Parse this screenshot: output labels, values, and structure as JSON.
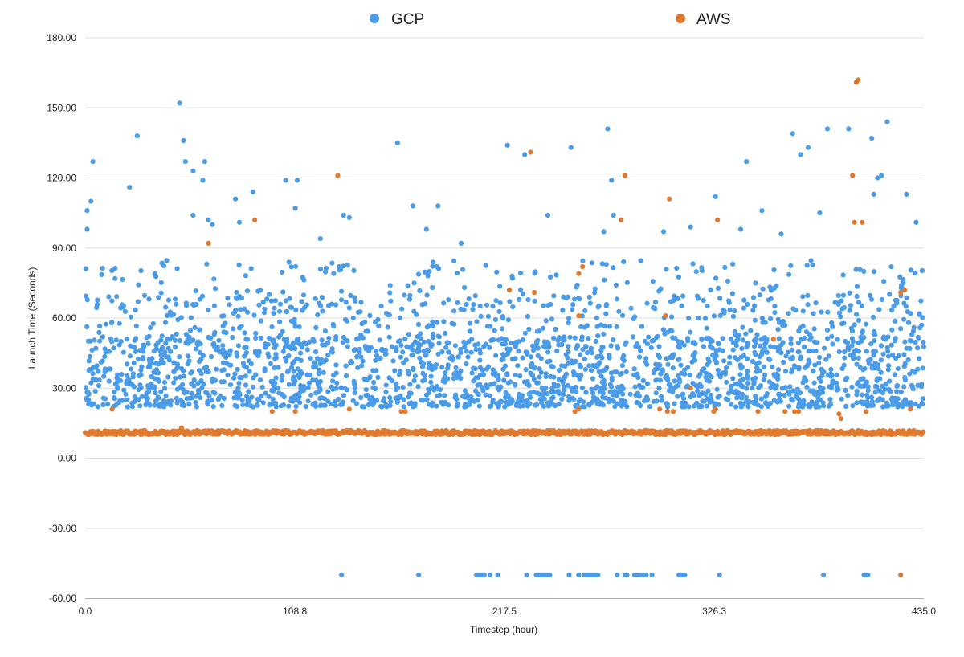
{
  "chart_data": {
    "type": "scatter",
    "title": "",
    "xlabel": "Timestep (hour)",
    "ylabel": "Launch Time (Seconds)",
    "xlim": [
      0,
      435
    ],
    "ylim": [
      -60,
      180
    ],
    "x_ticks": [
      "0.0",
      "108.8",
      "217.5",
      "326.3",
      "435.0"
    ],
    "y_ticks": [
      "180.00",
      "150.00",
      "120.00",
      "90.00",
      "60.00",
      "30.00",
      "0.00",
      "-30.00",
      "-60.00"
    ],
    "grid": true,
    "legend_position": "top-center",
    "series": [
      {
        "name": "GCP",
        "color": "#4a9be8",
        "summary": "approx. 2600 points; bulk 22-60 s, spread up to ~85 s, outliers to ~152 s, failures plotted at -50 s",
        "outliers": [
          {
            "x": 1,
            "y": 106
          },
          {
            "x": 1,
            "y": 98
          },
          {
            "x": 3,
            "y": 110
          },
          {
            "x": 4,
            "y": 127
          },
          {
            "x": 23,
            "y": 116
          },
          {
            "x": 27,
            "y": 138
          },
          {
            "x": 49,
            "y": 152
          },
          {
            "x": 51,
            "y": 136
          },
          {
            "x": 52,
            "y": 127
          },
          {
            "x": 56,
            "y": 123
          },
          {
            "x": 56,
            "y": 104
          },
          {
            "x": 61,
            "y": 119
          },
          {
            "x": 62,
            "y": 127
          },
          {
            "x": 64,
            "y": 102
          },
          {
            "x": 66,
            "y": 100
          },
          {
            "x": 78,
            "y": 111
          },
          {
            "x": 80,
            "y": 101
          },
          {
            "x": 87,
            "y": 114
          },
          {
            "x": 104,
            "y": 119
          },
          {
            "x": 109,
            "y": 107
          },
          {
            "x": 110,
            "y": 119
          },
          {
            "x": 122,
            "y": 94
          },
          {
            "x": 134,
            "y": 104
          },
          {
            "x": 137,
            "y": 103
          },
          {
            "x": 162,
            "y": 135
          },
          {
            "x": 170,
            "y": 108
          },
          {
            "x": 177,
            "y": 98
          },
          {
            "x": 183,
            "y": 108
          },
          {
            "x": 195,
            "y": 92
          },
          {
            "x": 219,
            "y": 134
          },
          {
            "x": 228,
            "y": 130
          },
          {
            "x": 240,
            "y": 104
          },
          {
            "x": 252,
            "y": 133
          },
          {
            "x": 269,
            "y": 97
          },
          {
            "x": 271,
            "y": 141
          },
          {
            "x": 273,
            "y": 119
          },
          {
            "x": 274,
            "y": 104
          },
          {
            "x": 300,
            "y": 97
          },
          {
            "x": 314,
            "y": 99
          },
          {
            "x": 327,
            "y": 112
          },
          {
            "x": 340,
            "y": 98
          },
          {
            "x": 343,
            "y": 127
          },
          {
            "x": 351,
            "y": 106
          },
          {
            "x": 361,
            "y": 96
          },
          {
            "x": 367,
            "y": 139
          },
          {
            "x": 371,
            "y": 130
          },
          {
            "x": 375,
            "y": 133
          },
          {
            "x": 381,
            "y": 105
          },
          {
            "x": 385,
            "y": 141
          },
          {
            "x": 396,
            "y": 141
          },
          {
            "x": 408,
            "y": 137
          },
          {
            "x": 411,
            "y": 120
          },
          {
            "x": 413,
            "y": 121
          },
          {
            "x": 409,
            "y": 113
          },
          {
            "x": 416,
            "y": 144
          },
          {
            "x": 426,
            "y": 113
          },
          {
            "x": 431,
            "y": 101
          }
        ],
        "failures_at": -50,
        "failure_x": [
          133,
          173,
          203,
          204,
          205,
          206,
          207,
          210,
          214,
          229,
          234,
          235,
          236,
          237,
          238,
          239,
          240,
          241,
          251,
          256,
          259,
          260,
          261,
          262,
          263,
          264,
          265,
          266,
          276,
          280,
          281,
          285,
          287,
          289,
          291,
          294,
          308,
          309,
          310,
          311,
          329,
          383,
          404,
          405,
          406
        ]
      },
      {
        "name": "AWS",
        "color": "#e07a30",
        "summary": "approx. 2600 points; baseline ~11 s (range 9.5-12.5 s), occasional outliers",
        "baseline": 11,
        "outliers": [
          {
            "x": 14,
            "y": 21
          },
          {
            "x": 50,
            "y": 13
          },
          {
            "x": 64,
            "y": 92
          },
          {
            "x": 88,
            "y": 102
          },
          {
            "x": 97,
            "y": 20
          },
          {
            "x": 109,
            "y": 20
          },
          {
            "x": 131,
            "y": 121
          },
          {
            "x": 137,
            "y": 21
          },
          {
            "x": 164,
            "y": 20
          },
          {
            "x": 166,
            "y": 20
          },
          {
            "x": 220,
            "y": 72
          },
          {
            "x": 231,
            "y": 131
          },
          {
            "x": 233,
            "y": 71
          },
          {
            "x": 256,
            "y": 21
          },
          {
            "x": 254,
            "y": 20
          },
          {
            "x": 258,
            "y": 82
          },
          {
            "x": 256,
            "y": 79
          },
          {
            "x": 256,
            "y": 61
          },
          {
            "x": 278,
            "y": 102
          },
          {
            "x": 280,
            "y": 121
          },
          {
            "x": 298,
            "y": 21
          },
          {
            "x": 302,
            "y": 20
          },
          {
            "x": 303,
            "y": 111
          },
          {
            "x": 301,
            "y": 61
          },
          {
            "x": 305,
            "y": 20
          },
          {
            "x": 314,
            "y": 30
          },
          {
            "x": 326,
            "y": 20
          },
          {
            "x": 327,
            "y": 21
          },
          {
            "x": 328,
            "y": 102
          },
          {
            "x": 349,
            "y": 20
          },
          {
            "x": 357,
            "y": 51
          },
          {
            "x": 363,
            "y": 20
          },
          {
            "x": 368,
            "y": 20
          },
          {
            "x": 370,
            "y": 20
          },
          {
            "x": 391,
            "y": 19
          },
          {
            "x": 392,
            "y": 17
          },
          {
            "x": 398,
            "y": 121
          },
          {
            "x": 399,
            "y": 101
          },
          {
            "x": 400,
            "y": 161
          },
          {
            "x": 401,
            "y": 162
          },
          {
            "x": 403,
            "y": 101
          },
          {
            "x": 405,
            "y": 20
          },
          {
            "x": 423,
            "y": 71
          },
          {
            "x": 425,
            "y": 72
          },
          {
            "x": 423,
            "y": -50
          },
          {
            "x": 428,
            "y": 21
          }
        ]
      }
    ]
  }
}
